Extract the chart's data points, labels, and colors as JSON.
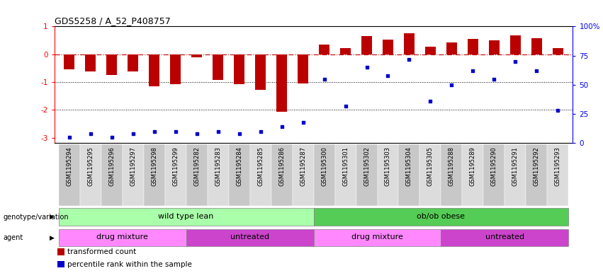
{
  "title": "GDS5258 / A_52_P408757",
  "samples": [
    "GSM1195294",
    "GSM1195295",
    "GSM1195296",
    "GSM1195297",
    "GSM1195298",
    "GSM1195299",
    "GSM1195282",
    "GSM1195283",
    "GSM1195284",
    "GSM1195285",
    "GSM1195286",
    "GSM1195287",
    "GSM1195300",
    "GSM1195301",
    "GSM1195302",
    "GSM1195303",
    "GSM1195304",
    "GSM1195305",
    "GSM1195288",
    "GSM1195289",
    "GSM1195290",
    "GSM1195291",
    "GSM1195292",
    "GSM1195293"
  ],
  "red_values": [
    -0.55,
    -0.62,
    -0.75,
    -0.62,
    -1.15,
    -1.08,
    -0.12,
    -0.92,
    -1.08,
    -1.28,
    -2.08,
    -1.05,
    0.35,
    0.22,
    0.65,
    0.52,
    0.75,
    0.28,
    0.42,
    0.55,
    0.5,
    0.68,
    0.58,
    0.22
  ],
  "blue_percentiles": [
    5,
    8,
    5,
    8,
    10,
    10,
    8,
    10,
    8,
    10,
    14,
    18,
    55,
    32,
    65,
    58,
    72,
    36,
    50,
    62,
    55,
    70,
    62,
    28
  ],
  "genotype_groups": [
    {
      "label": "wild type lean",
      "start": 0,
      "end": 11,
      "color": "#AAFFAA"
    },
    {
      "label": "ob/ob obese",
      "start": 12,
      "end": 23,
      "color": "#55CC55"
    }
  ],
  "agent_groups": [
    {
      "label": "drug mixture",
      "start": 0,
      "end": 5,
      "color": "#FF88FF"
    },
    {
      "label": "untreated",
      "start": 6,
      "end": 11,
      "color": "#CC44CC"
    },
    {
      "label": "drug mixture",
      "start": 12,
      "end": 17,
      "color": "#FF88FF"
    },
    {
      "label": "untreated",
      "start": 18,
      "end": 23,
      "color": "#CC44CC"
    }
  ],
  "ylim_left": [
    -3.2,
    1.0
  ],
  "ylim_right": [
    0,
    100
  ],
  "left_yticks": [
    -3,
    -2,
    -1,
    0,
    1
  ],
  "right_yticks": [
    0,
    25,
    50,
    75,
    100
  ],
  "right_yticklabels": [
    "0",
    "25",
    "50",
    "75",
    "100%"
  ],
  "hline_y": 0,
  "dotted_lines": [
    -1,
    -2
  ],
  "bar_color": "#BB0000",
  "dot_color": "#0000CC",
  "legend_items": [
    {
      "label": "transformed count",
      "color": "#BB0000"
    },
    {
      "label": "percentile rank within the sample",
      "color": "#0000CC"
    }
  ],
  "cell_colors": [
    "#C8C8C8",
    "#DCDCDC"
  ]
}
